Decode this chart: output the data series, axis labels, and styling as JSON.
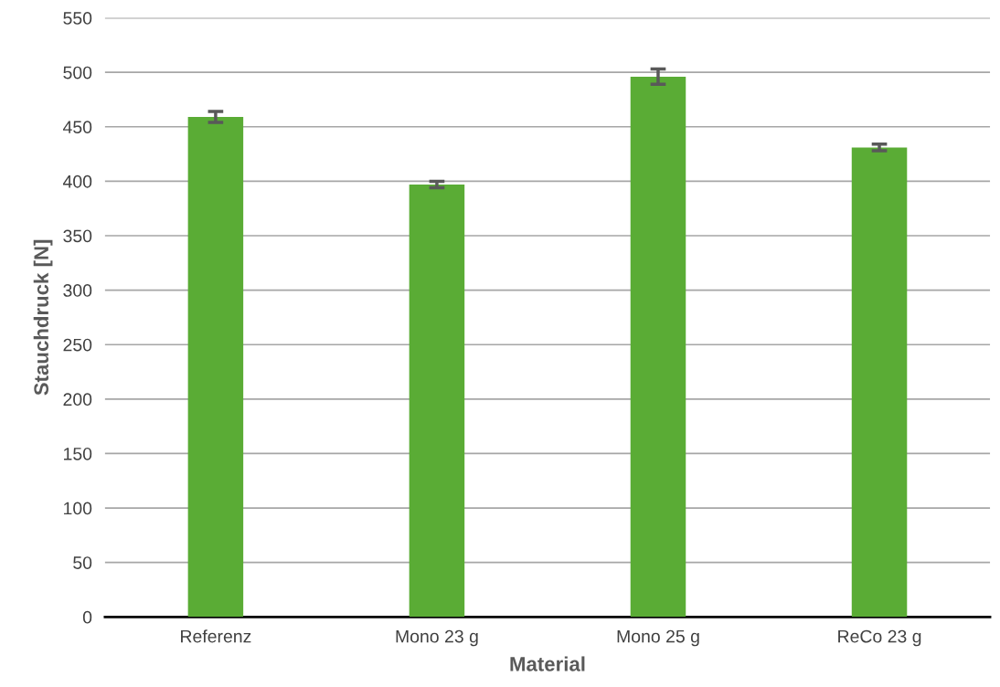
{
  "chart_data": {
    "type": "bar",
    "xlabel": "Material",
    "ylabel": "Stauchdruck [N]",
    "categories": [
      "Referenz",
      "Mono 23 g",
      "Mono 25 g",
      "ReCo 23 g"
    ],
    "values": [
      459,
      397,
      496,
      431
    ],
    "errors": [
      5,
      3,
      7,
      3
    ],
    "color": "#5aac35",
    "ylim": [
      0,
      550
    ],
    "yticks": [
      0,
      50,
      100,
      150,
      200,
      250,
      300,
      350,
      400,
      450,
      500,
      550
    ],
    "grid": "y"
  }
}
